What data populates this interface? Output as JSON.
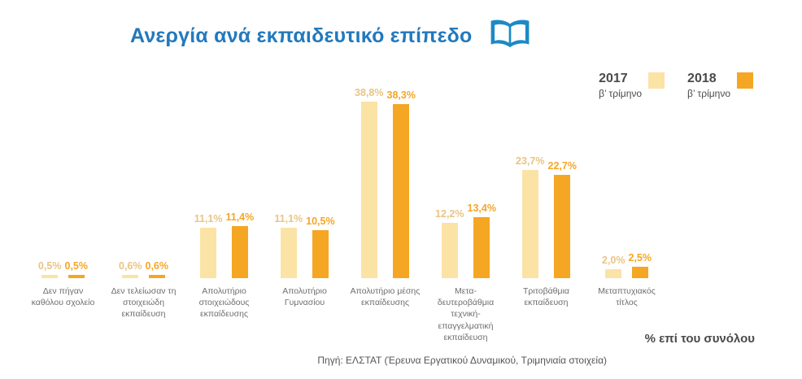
{
  "title": "Ανεργία ανά εκπαιδευτικό επίπεδο",
  "title_color": "#2279bd",
  "legend": [
    {
      "year": "2017",
      "period": "β’ τρίμηνο",
      "color": "#fbe3a6"
    },
    {
      "year": "2018",
      "period": "β’ τρίμηνο",
      "color": "#f5a623"
    }
  ],
  "footer": {
    "note": "% επί του συνόλου",
    "source": "Πηγή: ΕΛΣΤΑΤ (Έρευνα Εργατικού Δυναμικού, Τριμηνιαία στοιχεία)"
  },
  "chart_data": {
    "type": "bar",
    "title": "Ανεργία ανά εκπαιδευτικό επίπεδο",
    "categories": [
      "Δεν πήγαν καθόλου σχολείο",
      "Δεν τελείωσαν τη στοιχειώδη εκπαίδευση",
      "Απολυτήριο στοιχειώδους εκπαίδευσης",
      "Απολυτήριο Γυμνασίου",
      "Απολυτήριο μέσης εκπαίδευσης",
      "Μετα-δευτεροβάθμια τεχνική-επαγγελματική εκπαίδευση",
      "Τριτοβάθμια εκπαίδευση",
      "Μεταπτυχιακός τίτλος"
    ],
    "series": [
      {
        "name": "2017 β’ τρίμηνο",
        "color": "#fbe3a6",
        "values": [
          0.5,
          0.6,
          11.1,
          11.1,
          38.8,
          12.2,
          23.7,
          2.0
        ],
        "labels": [
          "0,5%",
          "0,6%",
          "11,1%",
          "11,1%",
          "38,8%",
          "12,2%",
          "23,7%",
          "2,0%"
        ]
      },
      {
        "name": "2018 β’ τρίμηνο",
        "color": "#f5a623",
        "values": [
          0.5,
          0.6,
          11.4,
          10.5,
          38.3,
          13.4,
          22.7,
          2.5
        ],
        "labels": [
          "0,5%",
          "0,6%",
          "11,4%",
          "10,5%",
          "38,3%",
          "13,4%",
          "22,7%",
          "2,5%"
        ]
      }
    ],
    "ylim": [
      0,
      40
    ],
    "value_suffix": "%",
    "grid": false,
    "legend_position": "top-right"
  }
}
